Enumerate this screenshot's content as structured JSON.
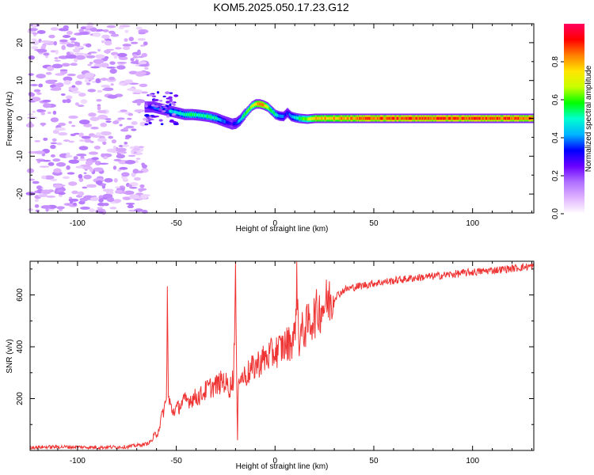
{
  "title": "KOM5.2025.050.17.23.G12",
  "chart_data": [
    {
      "type": "heatmap",
      "xlabel": "Height of straight line (km)",
      "ylabel": "Frequency (Hz)",
      "xlim": [
        -124,
        131
      ],
      "ylim": [
        -25,
        25
      ],
      "x_ticks": [
        -100,
        -50,
        0,
        50,
        100
      ],
      "y_ticks": [
        -20,
        -10,
        0,
        10,
        20
      ],
      "colorbar": {
        "label": "Normalized spectral amplitude",
        "range": [
          0,
          1
        ],
        "ticks": [
          0.0,
          0.2,
          0.4,
          0.6,
          0.8
        ],
        "tick_labels": [
          "0.0",
          "0.2",
          "0.4",
          "0.6",
          "0.8"
        ],
        "colors": [
          "#ffffff",
          "#e0b4ff",
          "#b070ff",
          "#6a00ff",
          "#0000ff",
          "#00b4ff",
          "#00ffd0",
          "#00ff00",
          "#c8ff00",
          "#ffe600",
          "#ff8000",
          "#ff0000",
          "#ff0060"
        ]
      },
      "noise_region_x": [
        -124,
        -65
      ],
      "ridge": {
        "x": [
          -66,
          -62,
          -58,
          -54,
          -50,
          -46,
          -42,
          -38,
          -34,
          -30,
          -26,
          -22,
          -20,
          -18,
          -16,
          -14,
          -12,
          -10,
          -8,
          -6,
          -4,
          -2,
          0,
          2,
          4,
          6,
          8,
          10,
          12,
          16,
          20,
          40,
          60,
          80,
          100,
          120,
          131
        ],
        "freq": [
          3,
          3,
          2.5,
          2,
          1.5,
          1,
          1,
          0.8,
          0.5,
          0,
          -0.8,
          -1.5,
          -1.3,
          -0.5,
          0.8,
          2,
          3.2,
          3.8,
          3.8,
          3.5,
          3,
          2,
          1,
          0.6,
          0.5,
          1.5,
          0.5,
          0.2,
          0,
          -0.2,
          0,
          0,
          0,
          0,
          0,
          0,
          0
        ],
        "amp": [
          0.3,
          0.4,
          0.45,
          0.5,
          0.5,
          0.55,
          0.6,
          0.55,
          0.6,
          0.55,
          0.4,
          0.3,
          0.4,
          0.5,
          0.6,
          0.65,
          0.7,
          0.85,
          0.95,
          0.85,
          0.7,
          0.6,
          0.55,
          0.45,
          0.4,
          0.35,
          0.45,
          0.5,
          0.6,
          0.7,
          0.85,
          0.9,
          0.95,
          0.95,
          0.95,
          0.95,
          0.9
        ]
      }
    },
    {
      "type": "line",
      "xlabel": "Height of straight line (km)",
      "ylabel": "SNR (v/v)",
      "xlim": [
        -124,
        131
      ],
      "ylim": [
        0,
        730
      ],
      "x_ticks": [
        -100,
        -50,
        0,
        50,
        100
      ],
      "y_ticks": [
        200,
        400,
        600
      ],
      "color": "#ef3434",
      "series": [
        {
          "name": "SNR",
          "x": [
            -124,
            -110,
            -90,
            -75,
            -65,
            -62,
            -59,
            -57,
            -55,
            -54.5,
            -54,
            -52,
            -50,
            -46,
            -42,
            -38,
            -34,
            -30,
            -26,
            -23,
            -21,
            -20,
            -19.5,
            -19,
            -18.5,
            -17,
            -15,
            -12,
            -8,
            -4,
            0,
            4,
            8,
            10,
            11,
            12,
            13,
            15,
            18,
            22,
            26,
            30,
            35,
            40,
            50,
            60,
            70,
            80,
            90,
            100,
            110,
            120,
            131
          ],
          "values": [
            12,
            14,
            12,
            14,
            25,
            40,
            80,
            140,
            190,
            600,
            200,
            150,
            160,
            190,
            200,
            210,
            240,
            250,
            270,
            240,
            280,
            700,
            300,
            30,
            310,
            280,
            290,
            310,
            340,
            360,
            380,
            400,
            420,
            440,
            680,
            420,
            450,
            470,
            500,
            540,
            570,
            590,
            620,
            630,
            645,
            655,
            665,
            672,
            680,
            688,
            695,
            702,
            712
          ]
        }
      ]
    }
  ]
}
